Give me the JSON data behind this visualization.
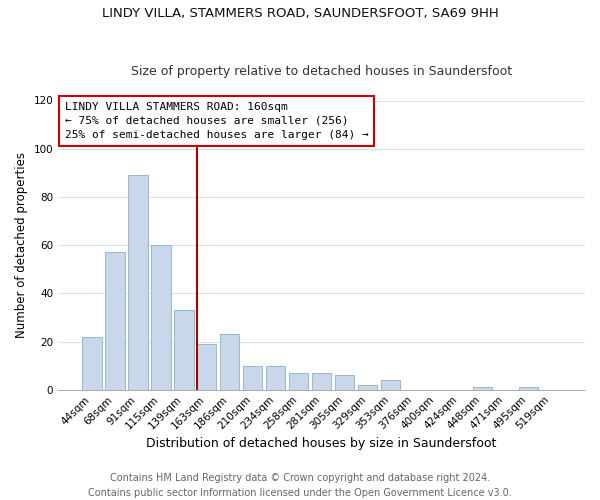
{
  "title": "LINDY VILLA, STAMMERS ROAD, SAUNDERSFOOT, SA69 9HH",
  "subtitle": "Size of property relative to detached houses in Saundersfoot",
  "xlabel": "Distribution of detached houses by size in Saundersfoot",
  "ylabel": "Number of detached properties",
  "bar_labels": [
    "44sqm",
    "68sqm",
    "91sqm",
    "115sqm",
    "139sqm",
    "163sqm",
    "186sqm",
    "210sqm",
    "234sqm",
    "258sqm",
    "281sqm",
    "305sqm",
    "329sqm",
    "353sqm",
    "376sqm",
    "400sqm",
    "424sqm",
    "448sqm",
    "471sqm",
    "495sqm",
    "519sqm"
  ],
  "bar_values": [
    22,
    57,
    89,
    60,
    33,
    19,
    23,
    10,
    10,
    7,
    7,
    6,
    2,
    4,
    0,
    0,
    0,
    1,
    0,
    1,
    0
  ],
  "bar_color": "#c8d8ea",
  "bar_edge_color": "#9ab8cc",
  "vline_color": "#aa0000",
  "annotation_line1": "LINDY VILLA STAMMERS ROAD: 160sqm",
  "annotation_line2": "← 75% of detached houses are smaller (256)",
  "annotation_line3": "25% of semi-detached houses are larger (84) →",
  "ylim": [
    0,
    120
  ],
  "yticks": [
    0,
    20,
    40,
    60,
    80,
    100,
    120
  ],
  "footer_line1": "Contains HM Land Registry data © Crown copyright and database right 2024.",
  "footer_line2": "Contains public sector information licensed under the Open Government Licence v3.0.",
  "title_fontsize": 9.5,
  "subtitle_fontsize": 9,
  "xlabel_fontsize": 9,
  "ylabel_fontsize": 8.5,
  "annotation_fontsize": 8,
  "tick_fontsize": 7.5,
  "footer_fontsize": 7,
  "background_color": "#ffffff",
  "plot_background_color": "#ffffff",
  "grid_color": "#d8e4f0"
}
